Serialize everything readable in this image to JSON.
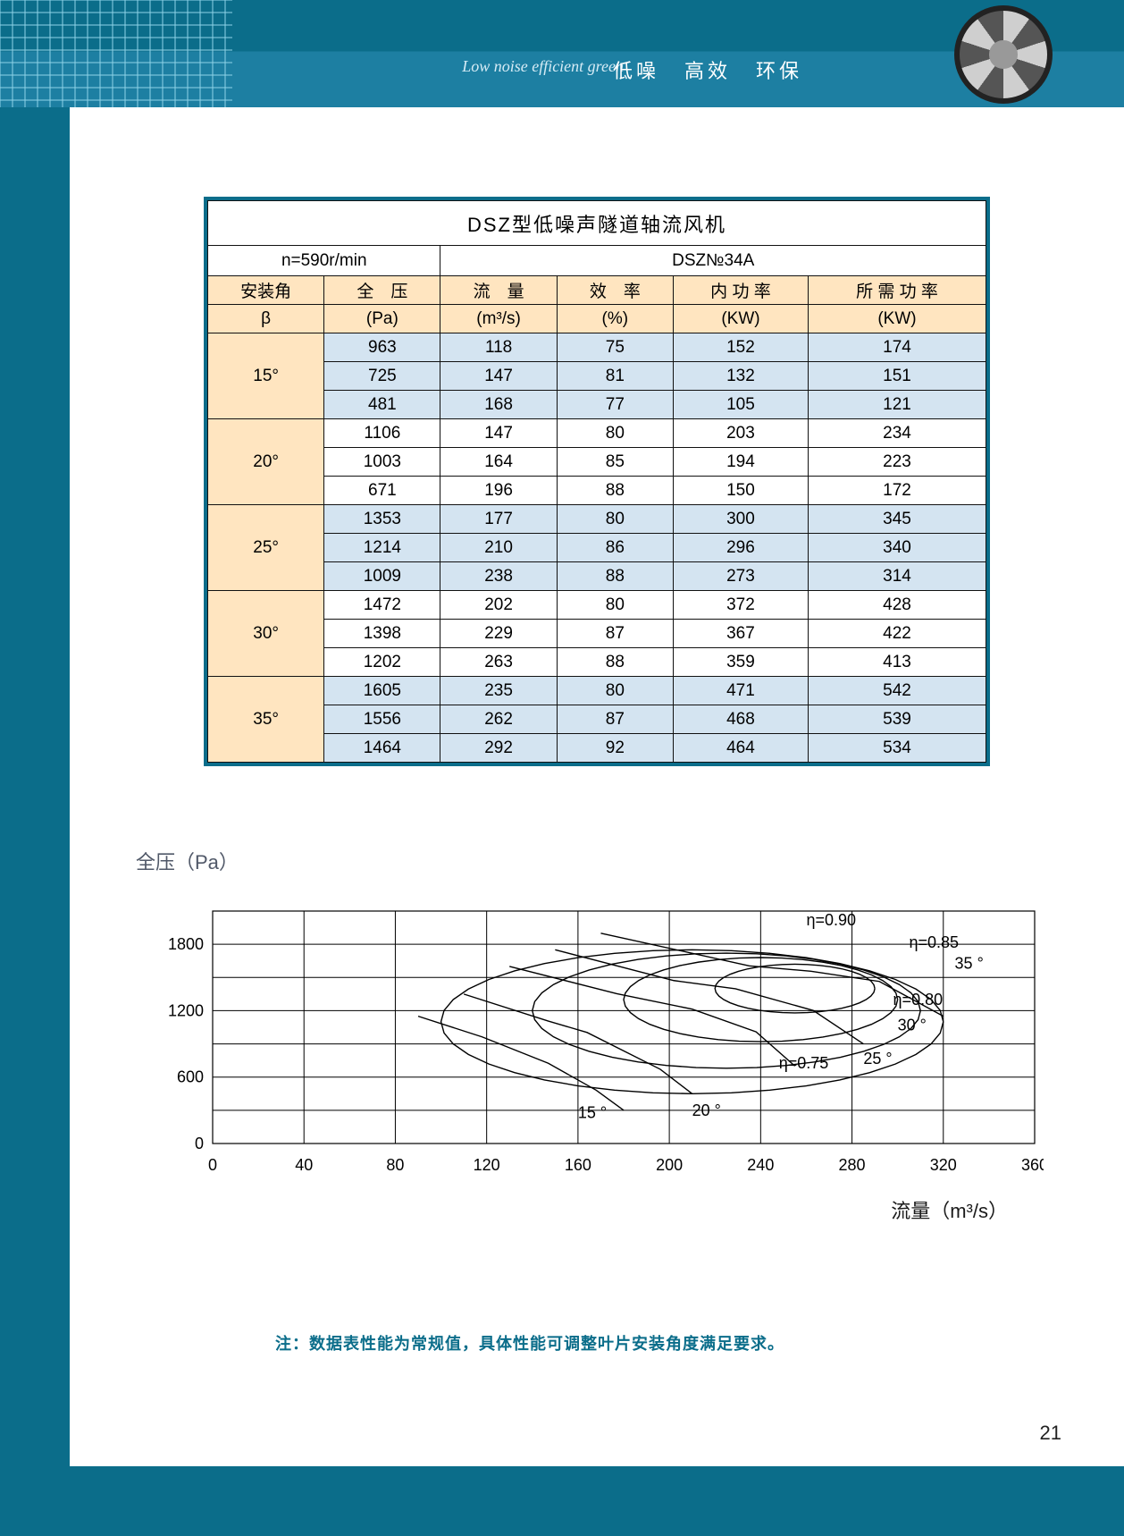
{
  "header": {
    "script_text": "Low noise efficient green",
    "tags": [
      "低噪",
      "高效",
      "环保"
    ]
  },
  "table": {
    "title": "DSZ型低噪声隧道轴流风机",
    "meta_left": "n=590r/min",
    "meta_right": "DSZ№34A",
    "columns": [
      "安装角",
      "全　压",
      "流　量",
      "效　率",
      "内 功 率",
      "所 需 功 率"
    ],
    "sub_columns": [
      "β",
      "(Pa)",
      "(m³/s)",
      "(%)",
      "(KW)",
      "(KW)"
    ],
    "groups": [
      {
        "angle": "15°",
        "band": "blue",
        "rows": [
          [
            "963",
            "118",
            "75",
            "152",
            "174"
          ],
          [
            "725",
            "147",
            "81",
            "132",
            "151"
          ],
          [
            "481",
            "168",
            "77",
            "105",
            "121"
          ]
        ]
      },
      {
        "angle": "20°",
        "band": "cream",
        "rows": [
          [
            "1106",
            "147",
            "80",
            "203",
            "234"
          ],
          [
            "1003",
            "164",
            "85",
            "194",
            "223"
          ],
          [
            "671",
            "196",
            "88",
            "150",
            "172"
          ]
        ]
      },
      {
        "angle": "25°",
        "band": "blue",
        "rows": [
          [
            "1353",
            "177",
            "80",
            "300",
            "345"
          ],
          [
            "1214",
            "210",
            "86",
            "296",
            "340"
          ],
          [
            "1009",
            "238",
            "88",
            "273",
            "314"
          ]
        ]
      },
      {
        "angle": "30°",
        "band": "cream",
        "rows": [
          [
            "1472",
            "202",
            "80",
            "372",
            "428"
          ],
          [
            "1398",
            "229",
            "87",
            "367",
            "422"
          ],
          [
            "1202",
            "263",
            "88",
            "359",
            "413"
          ]
        ]
      },
      {
        "angle": "35°",
        "band": "blue",
        "rows": [
          [
            "1605",
            "235",
            "80",
            "471",
            "542"
          ],
          [
            "1556",
            "262",
            "87",
            "468",
            "539"
          ],
          [
            "1464",
            "292",
            "92",
            "464",
            "534"
          ]
        ]
      }
    ]
  },
  "chart": {
    "y_label": "全压（Pa）",
    "x_label": "流量（m³/s）",
    "y_ticks": [
      "1800",
      "1200",
      "600",
      "0"
    ],
    "x_ticks": [
      "0",
      "40",
      "80",
      "120",
      "160",
      "200",
      "240",
      "280",
      "320",
      "360"
    ],
    "annotations": {
      "eta_090": "η=0.90",
      "eta_085": "η=0.85",
      "eta_080": "η=0.80",
      "eta_075": "η=0.75",
      "a35": "35 °",
      "a30": "30 °",
      "a25": "25 °",
      "a20": "20 °",
      "a15": "15 °"
    },
    "x_range": [
      0,
      360
    ],
    "y_range": [
      0,
      2100
    ],
    "grid_color": "#000",
    "curve_color": "#000",
    "font_size": 18
  },
  "footnote": "注：数据表性能为常规值，具体性能可调整叶片安装角度满足要求。",
  "page_number": "21"
}
